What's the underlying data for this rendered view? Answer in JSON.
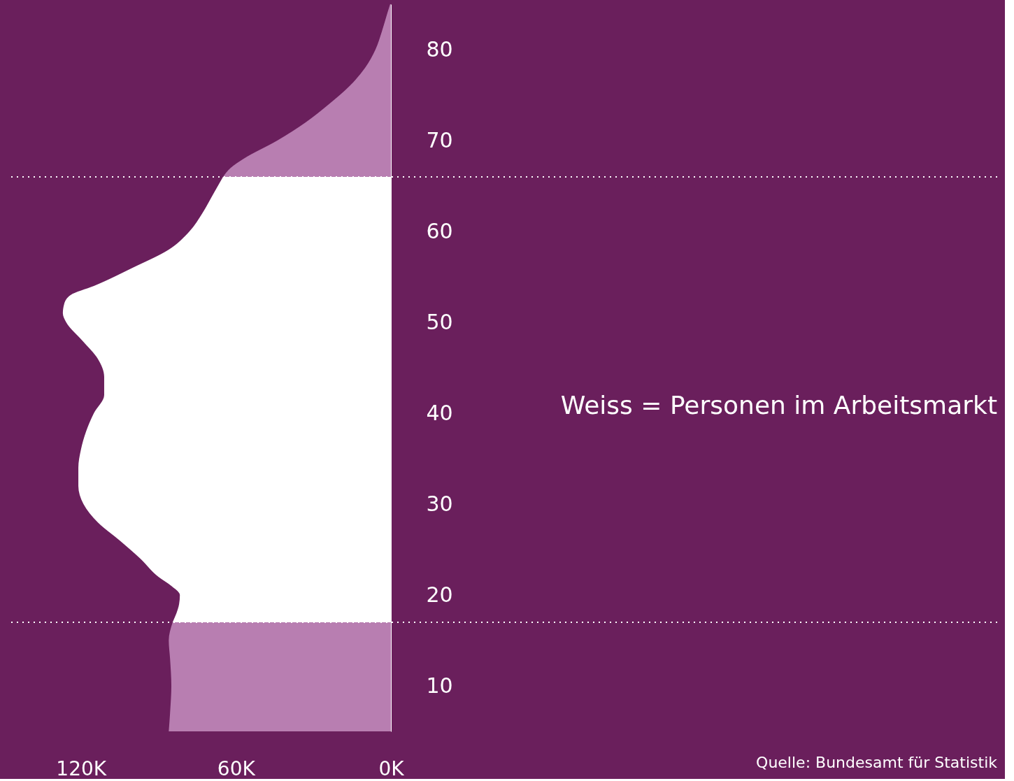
{
  "chart_data": {
    "type": "area",
    "orientation": "horizontal",
    "series": [
      {
        "color": "#b87eb1",
        "x": [
          5,
          7,
          10,
          13,
          15,
          17
        ],
        "values": [
          86000,
          85500,
          85000,
          85500,
          86000,
          84500
        ]
      },
      {
        "color": "#ffffff",
        "x": [
          17,
          19,
          20,
          21,
          22,
          24,
          26,
          28,
          30,
          32,
          34,
          36,
          38,
          40,
          42,
          44,
          46,
          48,
          50,
          51,
          52,
          53,
          54,
          56,
          58,
          60,
          62,
          64,
          65,
          66
        ],
        "values": [
          84500,
          82000,
          81700,
          85000,
          90000,
          97000,
          105000,
          113500,
          119000,
          121000,
          121000,
          120000,
          118000,
          115000,
          111000,
          111000,
          113500,
          119500,
          125700,
          127000,
          126500,
          124000,
          115000,
          100000,
          86000,
          78000,
          73000,
          69000,
          67000,
          65000
        ]
      },
      {
        "color": "#b87eb1",
        "x": [
          66,
          67,
          68,
          70,
          72,
          74,
          76,
          78,
          80,
          82,
          84,
          85
        ],
        "values": [
          65000,
          62000,
          57000,
          44000,
          33000,
          24000,
          16000,
          10000,
          6000,
          3500,
          1400,
          300
        ]
      }
    ],
    "xlim": [
      147000,
      0
    ],
    "xticks": [
      {
        "value": 120000,
        "label": "120K"
      },
      {
        "value": 60000,
        "label": "60K"
      },
      {
        "value": 0,
        "label": "0K"
      }
    ],
    "ylim": [
      5,
      85
    ],
    "yticks": [
      10,
      20,
      30,
      40,
      50,
      60,
      70,
      80
    ],
    "ref_lines": [
      {
        "axis": "y",
        "value": 66,
        "color": "#ffffff",
        "line_style": "dotted"
      },
      {
        "axis": "y",
        "value": 17,
        "color": "#ffffff",
        "line_style": "dotted"
      }
    ],
    "annotations": [
      "Weiss = Personen im Arbeitsmarkt",
      "Quelle: Bundesamt für Statistik"
    ],
    "grid": false
  }
}
